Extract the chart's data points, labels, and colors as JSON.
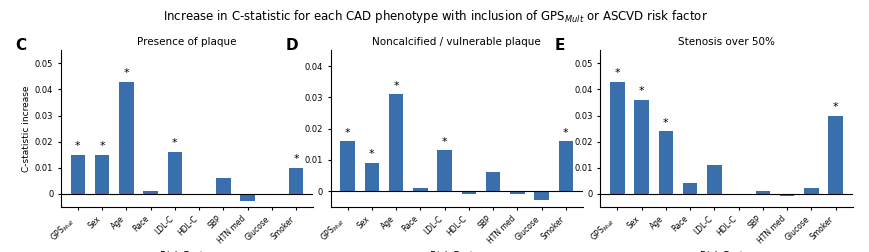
{
  "title": "Increase in C-statistic for each CAD phenotype with inclusion of GPS$_{Mult}$ or ASCVD risk factor",
  "bar_color": "#3a6fad",
  "xlabel": "Risk Factor",
  "ylabel": "C-statistic increase",
  "categories": [
    "GPS$_{Mult}$",
    "Sex",
    "Age",
    "Race",
    "LDL-C",
    "HDL-C",
    "SBP",
    "HTN med",
    "Glucose",
    "Smoker"
  ],
  "panels": [
    {
      "label": "C",
      "title": "Presence of plaque",
      "values": [
        0.015,
        0.015,
        0.043,
        0.001,
        0.016,
        0.0,
        0.006,
        -0.003,
        0.0,
        0.01
      ],
      "significant": [
        true,
        true,
        true,
        false,
        true,
        false,
        false,
        false,
        false,
        true
      ],
      "ylim": [
        -0.005,
        0.055
      ],
      "yticks": [
        0.0,
        0.01,
        0.02,
        0.03,
        0.04,
        0.05
      ]
    },
    {
      "label": "D",
      "title": "Noncalcified / vulnerable plaque",
      "values": [
        0.016,
        0.009,
        0.031,
        0.001,
        0.013,
        -0.001,
        0.006,
        -0.001,
        -0.003,
        0.016
      ],
      "significant": [
        true,
        true,
        true,
        false,
        true,
        false,
        false,
        false,
        false,
        true
      ],
      "ylim": [
        -0.005,
        0.045
      ],
      "yticks": [
        0.0,
        0.01,
        0.02,
        0.03,
        0.04
      ]
    },
    {
      "label": "E",
      "title": "Stenosis over 50%",
      "values": [
        0.043,
        0.036,
        0.024,
        0.004,
        0.011,
        0.0,
        0.001,
        -0.001,
        0.002,
        0.03
      ],
      "significant": [
        true,
        true,
        true,
        false,
        false,
        false,
        false,
        false,
        false,
        true
      ],
      "ylim": [
        -0.005,
        0.055
      ],
      "yticks": [
        0.0,
        0.01,
        0.02,
        0.03,
        0.04,
        0.05
      ]
    }
  ]
}
